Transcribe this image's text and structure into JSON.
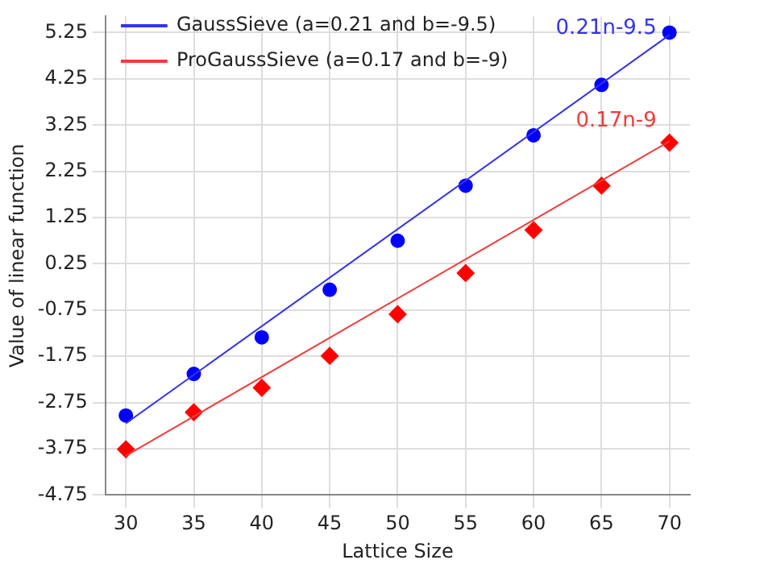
{
  "chart_data": {
    "type": "scatter",
    "xlabel": "Lattice Size",
    "ylabel": "Value of linear function",
    "xlim": [
      28.5,
      71.5
    ],
    "xticks": [
      30,
      35,
      40,
      45,
      50,
      55,
      60,
      65,
      70
    ],
    "ylim": [
      -4.75,
      5.6
    ],
    "yticks": [
      -4.75,
      -3.75,
      -2.75,
      -1.75,
      -0.75,
      0.25,
      1.25,
      2.25,
      3.25,
      4.25,
      5.25
    ],
    "grid": true,
    "legend": "top left",
    "series": [
      {
        "type": "line",
        "name": "GaussSieve (a=0.21 and b=-9.5)",
        "color": "#3333ee",
        "x": [
          30,
          70
        ],
        "values": [
          -3.2,
          5.2
        ],
        "marker": "none",
        "line_style": "solid"
      },
      {
        "type": "line",
        "name": "ProGaussSieve (a=0.17 and b=-9)",
        "color": "#f03c3c",
        "x": [
          30,
          70
        ],
        "values": [
          -3.9,
          2.9
        ],
        "marker": "none",
        "line_style": "solid"
      },
      {
        "type": "scatter",
        "color": "#0000ff",
        "marker": "circle",
        "x": [
          30,
          35,
          40,
          45,
          50,
          55,
          60,
          65,
          70
        ],
        "values": [
          -3.03,
          -2.13,
          -1.34,
          -0.31,
          0.75,
          1.94,
          3.03,
          4.12,
          5.25
        ]
      },
      {
        "type": "scatter",
        "color": "#ff0000",
        "marker": "diamond",
        "x": [
          30,
          35,
          40,
          45,
          50,
          55,
          60,
          65,
          70
        ],
        "values": [
          -3.76,
          -2.96,
          -2.43,
          -1.74,
          -0.84,
          0.05,
          0.98,
          1.94,
          2.87
        ]
      }
    ],
    "annotations": [
      "0.21n-9.5",
      "0.17n-9"
    ]
  }
}
